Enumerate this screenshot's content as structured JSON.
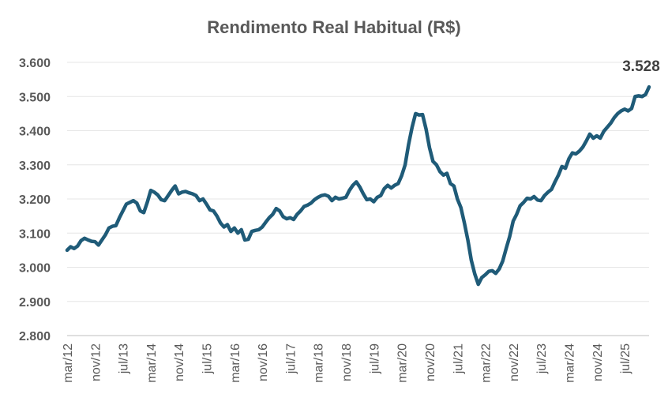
{
  "chart_data": {
    "type": "line",
    "title": "Rendimento Real Habitual (R$)",
    "xlabel": "",
    "ylabel": "",
    "ylim": [
      2800,
      3600
    ],
    "yticks": [
      2800,
      2900,
      3000,
      3100,
      3200,
      3300,
      3400,
      3500,
      3600
    ],
    "ytick_labels": [
      "2.800",
      "2.900",
      "3.000",
      "3.100",
      "3.200",
      "3.300",
      "3.400",
      "3.500",
      "3.600"
    ],
    "x_start": "mar/12",
    "x_end": "set/25",
    "xtick_labels": [
      "mar/12",
      "nov/12",
      "jul/13",
      "mar/14",
      "nov/14",
      "jul/15",
      "mar/16",
      "nov/16",
      "jul/17",
      "mar/18",
      "nov/18",
      "jul/19",
      "mar/20",
      "nov/20",
      "jul/21",
      "mar/22",
      "nov/22",
      "jul/23",
      "mar/24",
      "nov/24",
      "jul/25"
    ],
    "grid": true,
    "legend": "none",
    "series_color": "#1f5b78",
    "series": [
      {
        "values": [
          3050,
          3060,
          3055,
          3062,
          3078,
          3085,
          3080,
          3076,
          3075,
          3065,
          3080,
          3095,
          3115,
          3120,
          3122,
          3145,
          3165,
          3185,
          3190,
          3195,
          3188,
          3165,
          3160,
          3190,
          3225,
          3220,
          3212,
          3198,
          3195,
          3210,
          3225,
          3238,
          3215,
          3220,
          3222,
          3218,
          3215,
          3210,
          3195,
          3200,
          3185,
          3168,
          3165,
          3150,
          3130,
          3118,
          3125,
          3105,
          3115,
          3100,
          3110,
          3080,
          3082,
          3105,
          3108,
          3110,
          3118,
          3132,
          3145,
          3155,
          3172,
          3165,
          3148,
          3142,
          3145,
          3140,
          3155,
          3165,
          3178,
          3182,
          3188,
          3198,
          3205,
          3210,
          3212,
          3208,
          3195,
          3205,
          3200,
          3202,
          3205,
          3225,
          3240,
          3250,
          3235,
          3215,
          3198,
          3200,
          3192,
          3205,
          3210,
          3230,
          3240,
          3232,
          3240,
          3245,
          3268,
          3300,
          3360,
          3410,
          3450,
          3446,
          3447,
          3405,
          3350,
          3310,
          3300,
          3280,
          3270,
          3275,
          3245,
          3238,
          3200,
          3175,
          3130,
          3080,
          3020,
          2980,
          2950,
          2970,
          2978,
          2988,
          2990,
          2982,
          2995,
          3018,
          3055,
          3090,
          3135,
          3155,
          3180,
          3190,
          3202,
          3200,
          3207,
          3197,
          3195,
          3210,
          3220,
          3228,
          3250,
          3270,
          3295,
          3290,
          3318,
          3335,
          3332,
          3340,
          3352,
          3370,
          3390,
          3378,
          3385,
          3378,
          3398,
          3410,
          3422,
          3438,
          3450,
          3458,
          3463,
          3458,
          3465,
          3500,
          3502,
          3500,
          3506,
          3528
        ]
      }
    ],
    "last_value_label": "3.528"
  }
}
